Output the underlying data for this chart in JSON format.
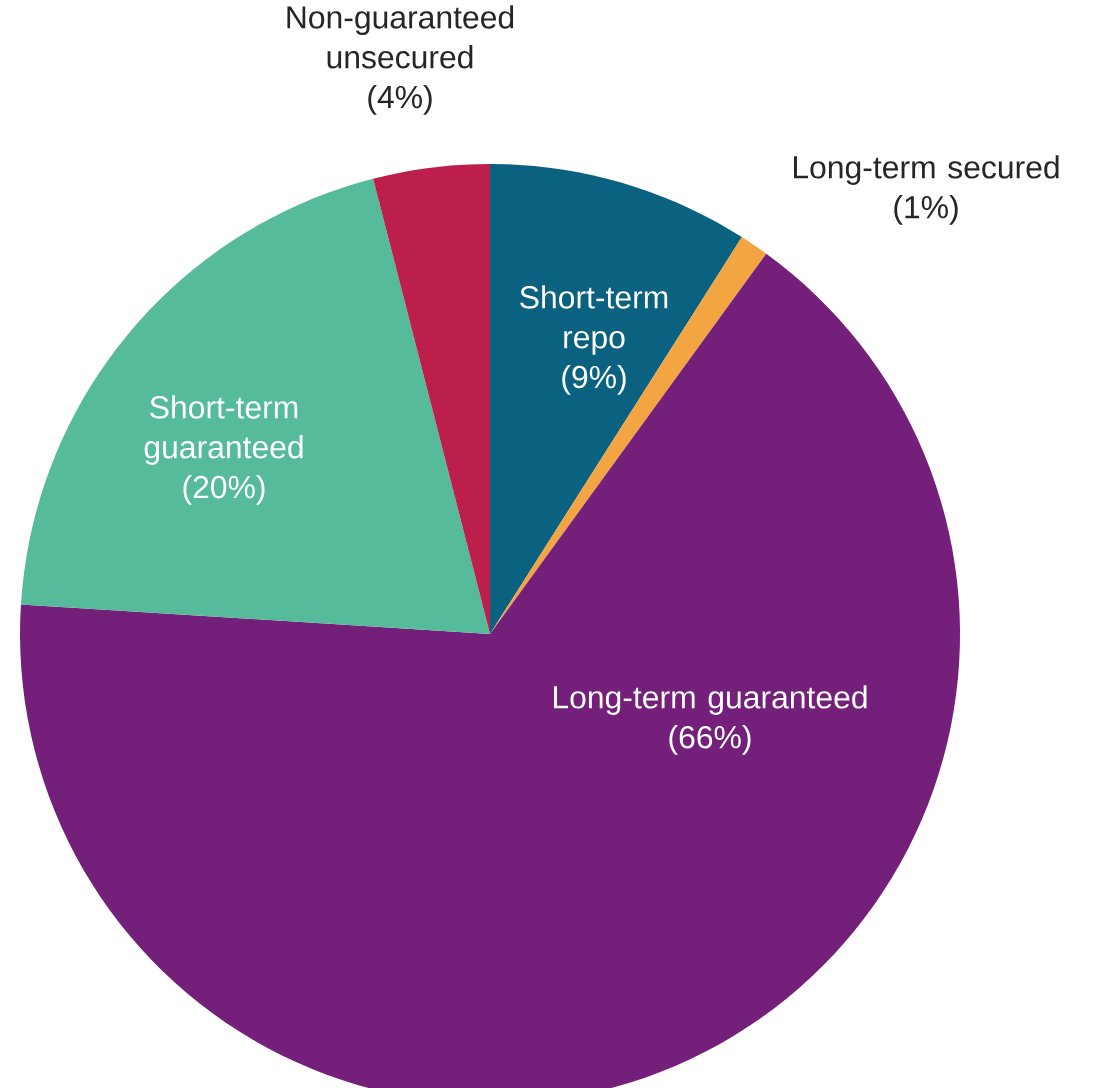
{
  "chart_data": {
    "type": "pie",
    "categories": [
      "Short-term repo",
      "Long-term secured",
      "Long-term guaranteed",
      "Short-term guaranteed",
      "Non-guaranteed unsecured"
    ],
    "values": [
      9,
      1,
      66,
      20,
      4
    ],
    "value_labels": [
      "(9%)",
      "(1%)",
      "(66%)",
      "(20%)",
      "(4%)"
    ],
    "colors": [
      "#0b6180",
      "#f2a541",
      "#74207a",
      "#56bb9b",
      "#bd1f4d"
    ]
  }
}
